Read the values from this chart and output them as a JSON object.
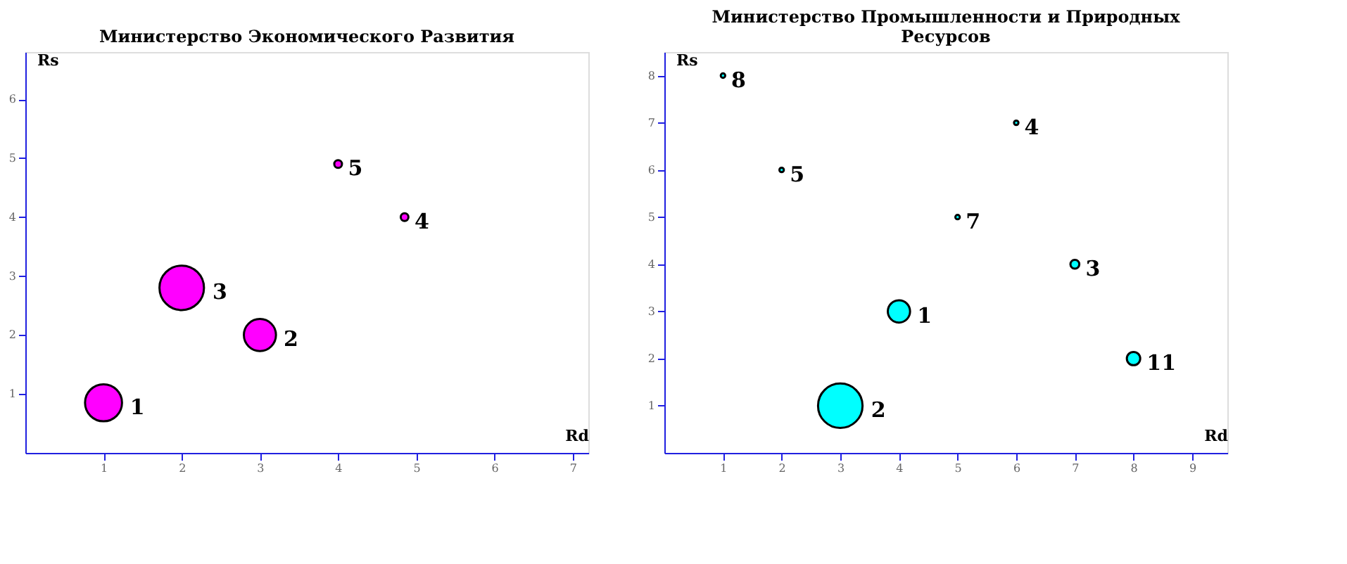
{
  "chart_data": [
    {
      "type": "bubble",
      "title": "Министерство Экономического Развития",
      "xlabel": "Rd",
      "ylabel": "Rs",
      "series": [
        {
          "color": "#ff00ff",
          "x": [
            1,
            3,
            2,
            4.85,
            4
          ],
          "values": [
            0.85,
            2,
            2.8,
            4,
            4.9
          ],
          "sizes": [
            0.69,
            0.52,
            1,
            0.03,
            0.03
          ]
        }
      ],
      "annotations": [
        {
          "text": "1",
          "x": 1,
          "y": 0.85
        },
        {
          "text": "2",
          "x": 3,
          "y": 2
        },
        {
          "text": "3",
          "x": 2,
          "y": 2.8
        },
        {
          "text": "4",
          "x": 4.85,
          "y": 4
        },
        {
          "text": "5",
          "x": 4,
          "y": 4.9
        }
      ],
      "xlim": [
        0,
        7.2
      ],
      "ylim": [
        0,
        6.8
      ],
      "xticks": [
        1,
        2,
        3,
        4,
        5,
        6,
        7
      ],
      "yticks": [
        1,
        2,
        3,
        4,
        5,
        6
      ],
      "grid": false,
      "legend": false
    },
    {
      "type": "bubble",
      "title": "Министерство Промышленности и Природных Ресурсов",
      "xlabel": "Rd",
      "ylabel": "Rs",
      "series": [
        {
          "color": "#00ffff",
          "x": [
            4,
            3,
            7,
            6,
            2,
            5,
            1,
            8
          ],
          "values": [
            3,
            1,
            4,
            7,
            6,
            5,
            8,
            2
          ],
          "sizes": [
            0.25,
            1,
            0.04,
            0.01,
            0.01,
            0.01,
            0.01,
            0.09
          ]
        }
      ],
      "annotations": [
        {
          "text": "1",
          "x": 4,
          "y": 3
        },
        {
          "text": "2",
          "x": 3,
          "y": 1
        },
        {
          "text": "3",
          "x": 7,
          "y": 4
        },
        {
          "text": "4",
          "x": 6,
          "y": 7
        },
        {
          "text": "5",
          "x": 2,
          "y": 6
        },
        {
          "text": "7",
          "x": 5,
          "y": 5
        },
        {
          "text": "8",
          "x": 1,
          "y": 8
        },
        {
          "text": "11",
          "x": 8,
          "y": 2
        }
      ],
      "xlim": [
        0,
        9.6
      ],
      "ylim": [
        0,
        8.5
      ],
      "xticks": [
        1,
        2,
        3,
        4,
        5,
        6,
        7,
        8,
        9
      ],
      "yticks": [
        1,
        2,
        3,
        4,
        5,
        6,
        7,
        8
      ],
      "grid": false,
      "legend": false
    }
  ]
}
